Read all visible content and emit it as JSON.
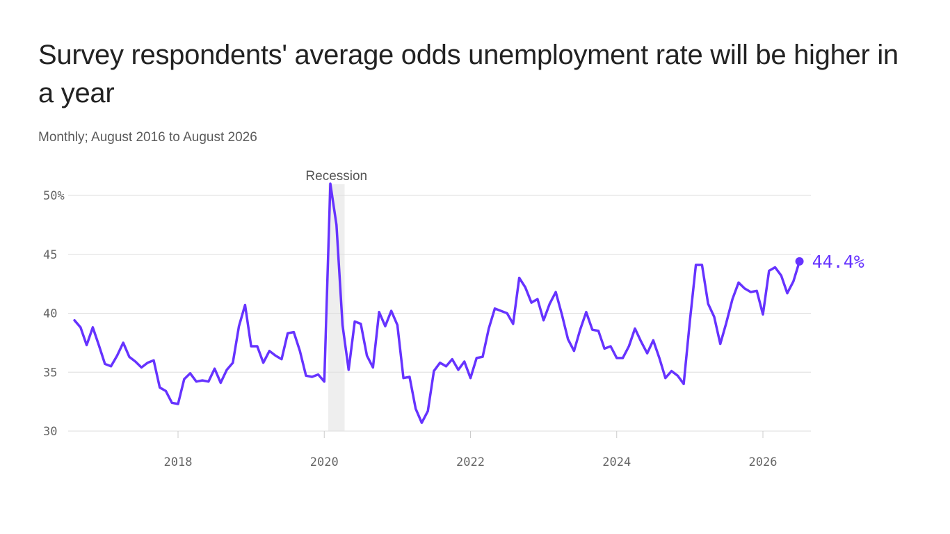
{
  "header": {
    "title": "Survey respondents' average odds unemployment rate will be higher in a year",
    "subtitle": "Monthly; August 2016 to August 2026"
  },
  "colors": {
    "line": "#6633ff",
    "grid": "#dddddd",
    "recession": "#eeeeee",
    "text": "#222222"
  },
  "chart_data": {
    "type": "line",
    "title": "Survey respondents' average odds unemployment rate will be higher in a year",
    "subtitle": "Monthly; August 2016 to August 2026",
    "xlabel": "",
    "ylabel": "",
    "x_start": "2016-08",
    "x_end": "2026-08",
    "x_ticks": [
      "2018",
      "2020",
      "2022",
      "2024",
      "2026"
    ],
    "y_ticks": [
      "50%",
      "45",
      "40",
      "35",
      "30"
    ],
    "ylim": [
      30,
      50
    ],
    "grid": true,
    "recession": {
      "label": "Recession",
      "start": "2020-02",
      "end": "2020-04"
    },
    "end_label": "44.4%",
    "series": [
      {
        "values": [
          39.4,
          38.8,
          37.3,
          38.8,
          37.3,
          35.7,
          35.5,
          36.4,
          37.5,
          36.3,
          35.9,
          35.4,
          35.8,
          36.0,
          33.7,
          33.4,
          32.4,
          32.3,
          34.4,
          34.9,
          34.2,
          34.3,
          34.2,
          35.3,
          34.1,
          35.2,
          35.8,
          38.9,
          40.7,
          37.2,
          37.2,
          35.8,
          36.8,
          36.4,
          36.1,
          38.3,
          38.4,
          36.8,
          34.7,
          34.6,
          34.8,
          34.2,
          51.0,
          47.5,
          39.0,
          35.2,
          39.3,
          39.1,
          36.4,
          35.4,
          40.1,
          38.9,
          40.2,
          39.0,
          34.5,
          34.6,
          31.9,
          30.7,
          31.7,
          35.1,
          35.8,
          35.5,
          36.1,
          35.2,
          35.9,
          34.5,
          36.2,
          36.3,
          38.7,
          40.4,
          40.2,
          40.0,
          39.1,
          43.0,
          42.2,
          40.9,
          41.2,
          39.4,
          40.8,
          41.8,
          39.9,
          37.8,
          36.8,
          38.6,
          40.1,
          38.6,
          38.5,
          37.0,
          37.2,
          36.2,
          36.2,
          37.2,
          38.7,
          37.6,
          36.6,
          37.7,
          36.2,
          34.5,
          35.1,
          34.7,
          34.0,
          39.3,
          44.1,
          44.1,
          40.8,
          39.7,
          37.4,
          39.2,
          41.2,
          42.6,
          42.1,
          41.8,
          41.9,
          39.9,
          43.6,
          43.9,
          43.2,
          41.7,
          42.7,
          44.4
        ]
      }
    ]
  }
}
